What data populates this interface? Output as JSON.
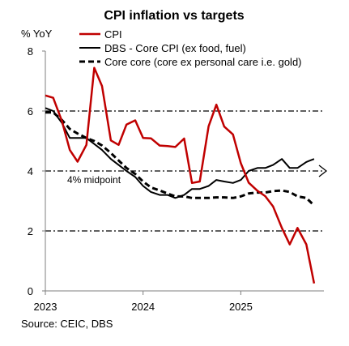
{
  "chart_data": {
    "type": "line",
    "title": "CPI inflation vs targets",
    "ylabel": "% YoY",
    "xlabel": "",
    "source": "Source: CEIC, DBS",
    "ylim": [
      0,
      8
    ],
    "xlim": [
      2023.0,
      2025.85
    ],
    "y_ticks": [
      0,
      2,
      4,
      6,
      8
    ],
    "x_ticks": [
      2023,
      2024,
      2025
    ],
    "grid": false,
    "legend_position": "top-right",
    "reference_lines": [
      {
        "y": 6,
        "style": "dash-dot",
        "color": "#000000"
      },
      {
        "y": 4,
        "style": "dash-dot",
        "color": "#000000",
        "label": "4% midpoint",
        "arrow": true
      },
      {
        "y": 2,
        "style": "dash-dot",
        "color": "#000000"
      }
    ],
    "series": [
      {
        "name": "CPI",
        "color": "#c00000",
        "style": "solid",
        "x": [
          2023.0,
          2023.08,
          2023.17,
          2023.25,
          2023.33,
          2023.42,
          2023.5,
          2023.58,
          2023.67,
          2023.75,
          2023.83,
          2023.92,
          2024.0,
          2024.08,
          2024.17,
          2024.25,
          2024.33,
          2024.42,
          2024.5,
          2024.58,
          2024.67,
          2024.75,
          2024.83,
          2024.92,
          2025.0,
          2025.08,
          2025.17,
          2025.25,
          2025.33,
          2025.42,
          2025.5,
          2025.58,
          2025.67,
          2025.75
        ],
        "values": [
          6.52,
          6.44,
          5.66,
          4.7,
          4.31,
          4.87,
          7.44,
          6.83,
          5.02,
          4.87,
          5.55,
          5.69,
          5.1,
          5.09,
          4.85,
          4.83,
          4.8,
          5.08,
          3.6,
          3.65,
          5.49,
          6.21,
          5.48,
          5.22,
          4.26,
          3.61,
          3.34,
          3.16,
          2.82,
          2.1,
          1.55,
          2.1,
          1.55,
          0.25
        ]
      },
      {
        "name": "DBS - Core CPI (ex food, fuel)",
        "color": "#000000",
        "style": "solid",
        "x": [
          2023.0,
          2023.08,
          2023.17,
          2023.25,
          2023.33,
          2023.42,
          2023.5,
          2023.58,
          2023.67,
          2023.75,
          2023.83,
          2023.92,
          2024.0,
          2024.08,
          2024.17,
          2024.25,
          2024.33,
          2024.42,
          2024.5,
          2024.58,
          2024.67,
          2024.75,
          2024.83,
          2024.92,
          2025.0,
          2025.08,
          2025.17,
          2025.25,
          2025.33,
          2025.42,
          2025.5,
          2025.58,
          2025.67,
          2025.75
        ],
        "values": [
          6.1,
          6.0,
          5.6,
          5.1,
          5.1,
          5.1,
          4.9,
          4.7,
          4.4,
          4.2,
          4.0,
          3.8,
          3.5,
          3.3,
          3.2,
          3.2,
          3.1,
          3.2,
          3.4,
          3.4,
          3.5,
          3.7,
          3.65,
          3.6,
          3.7,
          4.0,
          4.1,
          4.1,
          4.2,
          4.4,
          4.1,
          4.1,
          4.3,
          4.4
        ]
      },
      {
        "name": "Core core (core ex personal care i.e. gold)",
        "color": "#000000",
        "style": "dashed",
        "x": [
          2023.0,
          2023.08,
          2023.17,
          2023.25,
          2023.33,
          2023.42,
          2023.5,
          2023.58,
          2023.67,
          2023.75,
          2023.83,
          2023.92,
          2024.0,
          2024.08,
          2024.17,
          2024.25,
          2024.33,
          2024.42,
          2024.5,
          2024.58,
          2024.67,
          2024.75,
          2024.83,
          2024.92,
          2025.0,
          2025.08,
          2025.17,
          2025.25,
          2025.33,
          2025.42,
          2025.5,
          2025.58,
          2025.67,
          2025.75
        ],
        "values": [
          5.95,
          5.95,
          5.7,
          5.4,
          5.25,
          5.1,
          5.0,
          4.85,
          4.6,
          4.35,
          4.1,
          3.9,
          3.65,
          3.45,
          3.35,
          3.25,
          3.15,
          3.15,
          3.1,
          3.1,
          3.1,
          3.12,
          3.12,
          3.1,
          3.15,
          3.25,
          3.28,
          3.28,
          3.33,
          3.35,
          3.3,
          3.15,
          3.1,
          2.85
        ]
      }
    ]
  }
}
